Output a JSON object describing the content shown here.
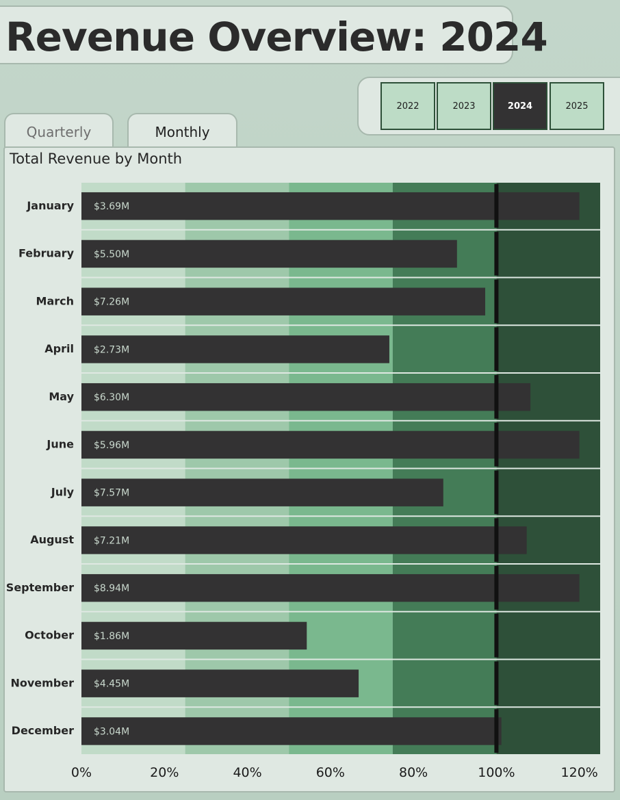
{
  "header": {
    "title": "Revenue Overview: 2024"
  },
  "year_selector": {
    "years": [
      "2022",
      "2023",
      "2024",
      "2025"
    ],
    "selected": "2024"
  },
  "view_tabs": {
    "tabs": [
      "Quarterly",
      "Monthly"
    ],
    "active": "Monthly"
  },
  "colors": {
    "band_0_25": "#c1dbc8",
    "band_25_50": "#9ec8aa",
    "band_50_75": "#7ab88e",
    "band_75_100": "#447c57",
    "band_100_125": "#2e5039",
    "bar": "#333233",
    "target_line": "#111111"
  },
  "chart_data": {
    "type": "bar",
    "orientation": "horizontal",
    "style": "bullet",
    "title": "Total Revenue by Month",
    "categories": [
      "January",
      "February",
      "March",
      "April",
      "May",
      "June",
      "July",
      "August",
      "September",
      "October",
      "November",
      "December"
    ],
    "bar_labels": [
      "$3.69M",
      "$5.50M",
      "$7.26M",
      "$2.73M",
      "$6.30M",
      "$5.96M",
      "$7.57M",
      "$7.21M",
      "$8.94M",
      "$1.86M",
      "$4.45M",
      "$3.04M"
    ],
    "values_pct_of_target": [
      120,
      90.5,
      97.3,
      74.2,
      108.2,
      120,
      87.2,
      107.3,
      120,
      54.3,
      66.8,
      101.2
    ],
    "target_pct": 100,
    "qualitative_bands_pct": [
      0,
      25,
      50,
      75,
      100,
      125
    ],
    "xlim": [
      0,
      125
    ],
    "xticks": [
      "0%",
      "20%",
      "40%",
      "60%",
      "80%",
      "100%",
      "120%"
    ],
    "xtick_values": [
      0,
      20,
      40,
      60,
      80,
      100,
      120
    ],
    "grid": false
  }
}
